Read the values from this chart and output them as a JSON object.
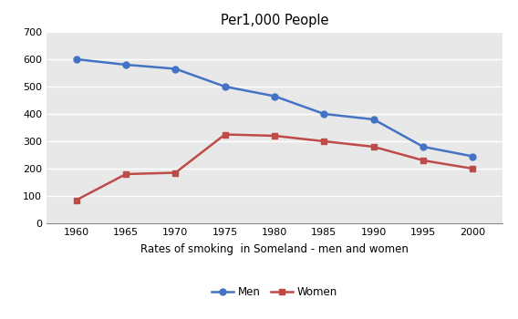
{
  "title": "Per1,000 People",
  "xlabel": "Rates of smoking  in Someland - men and women",
  "years": [
    1960,
    1965,
    1970,
    1975,
    1980,
    1985,
    1990,
    1995,
    2000
  ],
  "men": [
    600,
    580,
    565,
    500,
    465,
    400,
    380,
    280,
    245
  ],
  "women": [
    85,
    180,
    185,
    325,
    320,
    300,
    280,
    230,
    200
  ],
  "men_color": "#4472C4",
  "women_color": "#BE4B48",
  "men_label": "Men",
  "women_label": "Women",
  "ylim": [
    0,
    700
  ],
  "yticks": [
    0,
    100,
    200,
    300,
    400,
    500,
    600,
    700
  ],
  "plot_bg_color": "#E8E8E8",
  "fig_bg_color": "#FFFFFF",
  "grid_color": "#FFFFFF",
  "title_fontsize": 10.5,
  "xlabel_fontsize": 8.5,
  "tick_fontsize": 8,
  "legend_fontsize": 8.5
}
